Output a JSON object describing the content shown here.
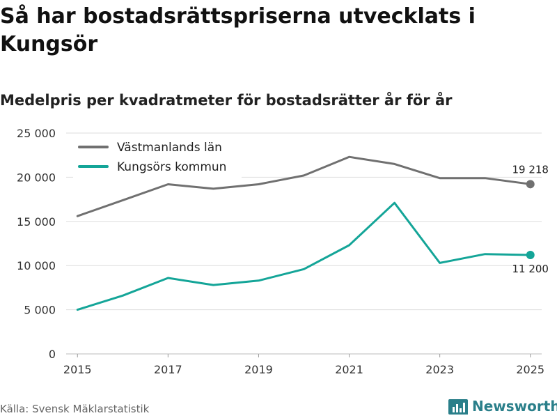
{
  "title": "Så har bostadsrättspriserna utvecklats i Kungsör",
  "subtitle": "Medelpris per kvadratmeter för bostadsrätter år för år",
  "source": "Källa: Svensk Mäklarstatistik",
  "brand": {
    "name": "Newsworthy",
    "icon": "bar-chart-logo-icon"
  },
  "colors": {
    "gray_series": "#707070",
    "teal_series": "#14a598",
    "grid": "#dddddd",
    "brand": "#2a7f8a"
  },
  "chart_data": {
    "type": "line",
    "title": "Så har bostadsrättspriserna utvecklats i Kungsör",
    "subtitle": "Medelpris per kvadratmeter för bostadsrätter år för år",
    "x": [
      2015,
      2016,
      2017,
      2018,
      2019,
      2020,
      2021,
      2022,
      2023,
      2024,
      2025
    ],
    "x_ticks": [
      "2015",
      "2017",
      "2019",
      "2021",
      "2023",
      "2025"
    ],
    "x_tick_values": [
      2015,
      2017,
      2019,
      2021,
      2023,
      2025
    ],
    "y_ticks": [
      "0",
      "5 000",
      "10 000",
      "15 000",
      "20 000",
      "25 000"
    ],
    "y_tick_values": [
      0,
      5000,
      10000,
      15000,
      20000,
      25000
    ],
    "ylim": [
      0,
      25000
    ],
    "xlim": [
      2014.75,
      2025.25
    ],
    "grid": true,
    "legend_position": "top-left",
    "series": [
      {
        "name": "Västmanlands län",
        "color": "#707070",
        "values": [
          15600,
          17400,
          19200,
          18700,
          19200,
          20200,
          22300,
          21500,
          19900,
          19900,
          19218
        ],
        "end_label": "19 218",
        "end_label_position": "above"
      },
      {
        "name": "Kungsörs kommun",
        "color": "#14a598",
        "values": [
          5000,
          6600,
          8600,
          7800,
          8300,
          9600,
          12300,
          17100,
          10300,
          11300,
          11200
        ],
        "end_label": "11 200",
        "end_label_position": "below"
      }
    ]
  }
}
